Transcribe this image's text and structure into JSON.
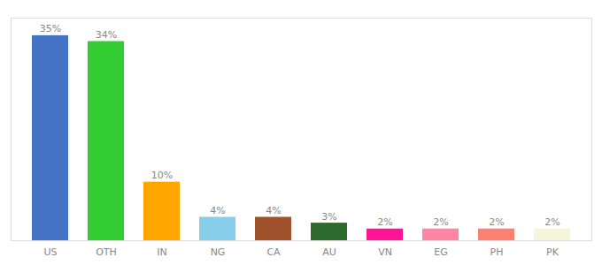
{
  "chart_data": {
    "type": "bar",
    "categories": [
      "US",
      "OTH",
      "IN",
      "NG",
      "CA",
      "AU",
      "VN",
      "EG",
      "PH",
      "PK"
    ],
    "values": [
      35,
      34,
      10,
      4,
      4,
      3,
      2,
      2,
      2,
      2
    ],
    "value_labels": [
      "35%",
      "34%",
      "10%",
      "4%",
      "4%",
      "3%",
      "2%",
      "2%",
      "2%",
      "2%"
    ],
    "colors": [
      "#4472C4",
      "#33CC33",
      "#FFA500",
      "#87CEEB",
      "#A0522D",
      "#2D6A2D",
      "#FF1493",
      "#FF85A2",
      "#FA8072",
      "#F5F5DC"
    ],
    "ylim": [
      0,
      38
    ],
    "grid": false,
    "data_labels": true,
    "tick_labels": "x"
  }
}
